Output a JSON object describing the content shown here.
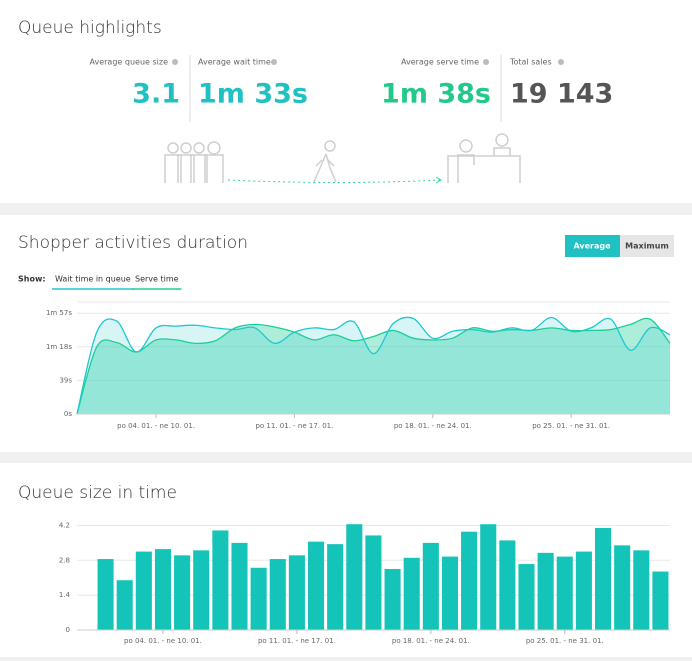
{
  "highlights": {
    "title": "Queue highlights",
    "stats": [
      {
        "label": "Average queue size",
        "value": "3.1",
        "color": "#1fc1c3"
      },
      {
        "label": "Average wait time",
        "value": "1m 33s",
        "color": "#1fc1c3"
      },
      {
        "label": "Average serve time",
        "value": "1m 38s",
        "color": "#22c98a"
      },
      {
        "label": "Total sales",
        "value": "19 143",
        "color": "#555555"
      }
    ]
  },
  "chart_data": [
    {
      "type": "area",
      "title": "Shopper activities duration",
      "buttons": [
        "Average",
        "Maximum"
      ],
      "show_label": "Show:",
      "categories": [
        null,
        null,
        null,
        null,
        null,
        null,
        null,
        null,
        null,
        null,
        null,
        null,
        null,
        null,
        null,
        null,
        null,
        null,
        null,
        null,
        null,
        null,
        null,
        null,
        null,
        null,
        null,
        null,
        null,
        null,
        null
      ],
      "series": [
        {
          "name": "Wait time in queue",
          "color": "#1fc8d0",
          "values": [
            0,
            95,
            108,
            72,
            100,
            102,
            103,
            100,
            98,
            100,
            82,
            95,
            100,
            98,
            107,
            70,
            105,
            111,
            88,
            96,
            98,
            95,
            100,
            97,
            112,
            96,
            100,
            110,
            74,
            100,
            92
          ]
        },
        {
          "name": "Serve time",
          "color": "#1ecf95",
          "values": [
            0,
            78,
            83,
            72,
            86,
            86,
            82,
            85,
            100,
            104,
            101,
            95,
            86,
            92,
            85,
            90,
            97,
            88,
            86,
            88,
            100,
            96,
            98,
            97,
            100,
            97,
            97,
            98,
            104,
            110,
            82
          ]
        }
      ],
      "ylim": [
        0,
        130
      ],
      "yticks": [
        {
          "value": 0,
          "label": "0s"
        },
        {
          "value": 39,
          "label": "39s"
        },
        {
          "value": 78,
          "label": "1m 18s"
        },
        {
          "value": 117,
          "label": "1m 57s"
        }
      ],
      "xticks": [
        {
          "value": 4,
          "label": "po 04. 01. - ne 10. 01."
        },
        {
          "value": 11,
          "label": "po 11. 01. - ne 17. 01."
        },
        {
          "value": 18,
          "label": "po 18. 01. - ne 24. 01."
        },
        {
          "value": 25,
          "label": "po 25. 01. - ne 31. 01."
        }
      ],
      "grid": true
    },
    {
      "type": "bar",
      "title": "Queue size in time",
      "categories": [
        null,
        null,
        null,
        null,
        null,
        null,
        null,
        null,
        null,
        null,
        null,
        null,
        null,
        null,
        null,
        null,
        null,
        null,
        null,
        null,
        null,
        null,
        null,
        null,
        null,
        null,
        null,
        null,
        null,
        null
      ],
      "values": [
        2.85,
        2.0,
        3.15,
        3.25,
        3.0,
        3.2,
        4.0,
        3.5,
        2.5,
        2.85,
        3.0,
        3.55,
        3.45,
        4.25,
        3.8,
        2.45,
        2.9,
        3.5,
        2.95,
        3.95,
        4.25,
        3.6,
        2.65,
        3.1,
        2.95,
        3.15,
        4.1,
        3.4,
        3.2,
        2.35
      ],
      "color": "#14c4b8",
      "ylim": [
        0,
        4.5
      ],
      "yticks": [
        0,
        1.4,
        2.8,
        4.2
      ],
      "xticks": [
        {
          "value": 3,
          "label": "po 04. 01. - ne 10. 01."
        },
        {
          "value": 10,
          "label": "po 11. 01. - ne 17. 01."
        },
        {
          "value": 17,
          "label": "po 18. 01. - ne 24. 01."
        },
        {
          "value": 24,
          "label": "po 25. 01. - ne 31. 01."
        }
      ],
      "grid": true
    }
  ]
}
